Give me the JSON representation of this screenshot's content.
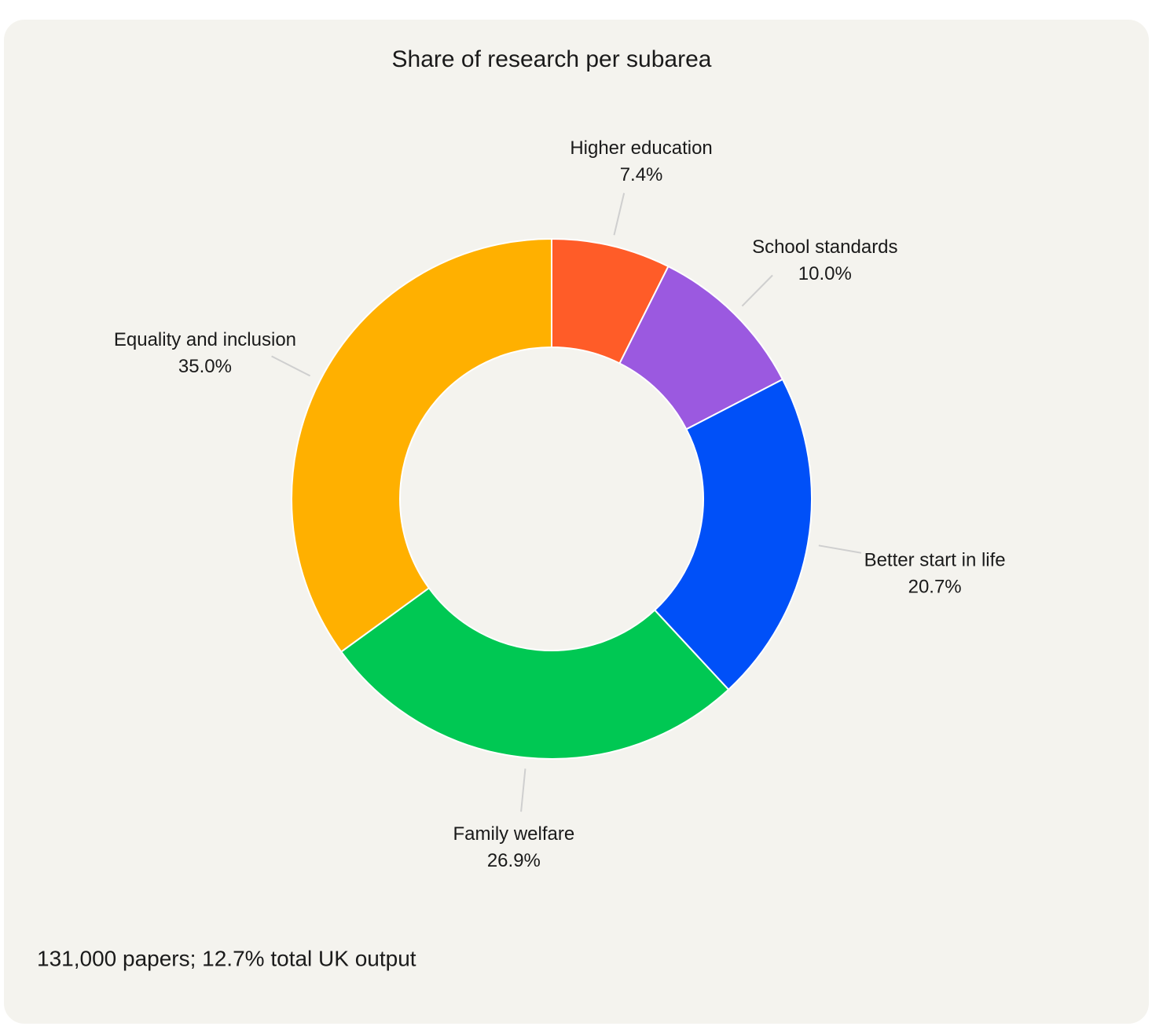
{
  "chart_data": {
    "type": "donut",
    "title": "Share of research per subarea",
    "categories": [
      "Higher education",
      "School standards",
      "Better start in life",
      "Family welfare",
      "Equality and inclusion"
    ],
    "values": [
      7.4,
      10.0,
      20.7,
      26.9,
      35.0
    ],
    "value_labels": [
      "7.4%",
      "10.0%",
      "20.7%",
      "26.9%",
      "35.0%"
    ],
    "colors": [
      "#ff5c28",
      "#9b59e0",
      "#0050f8",
      "#00c853",
      "#ffb000"
    ],
    "note": "131,000 papers; 12.7% total UK output"
  }
}
